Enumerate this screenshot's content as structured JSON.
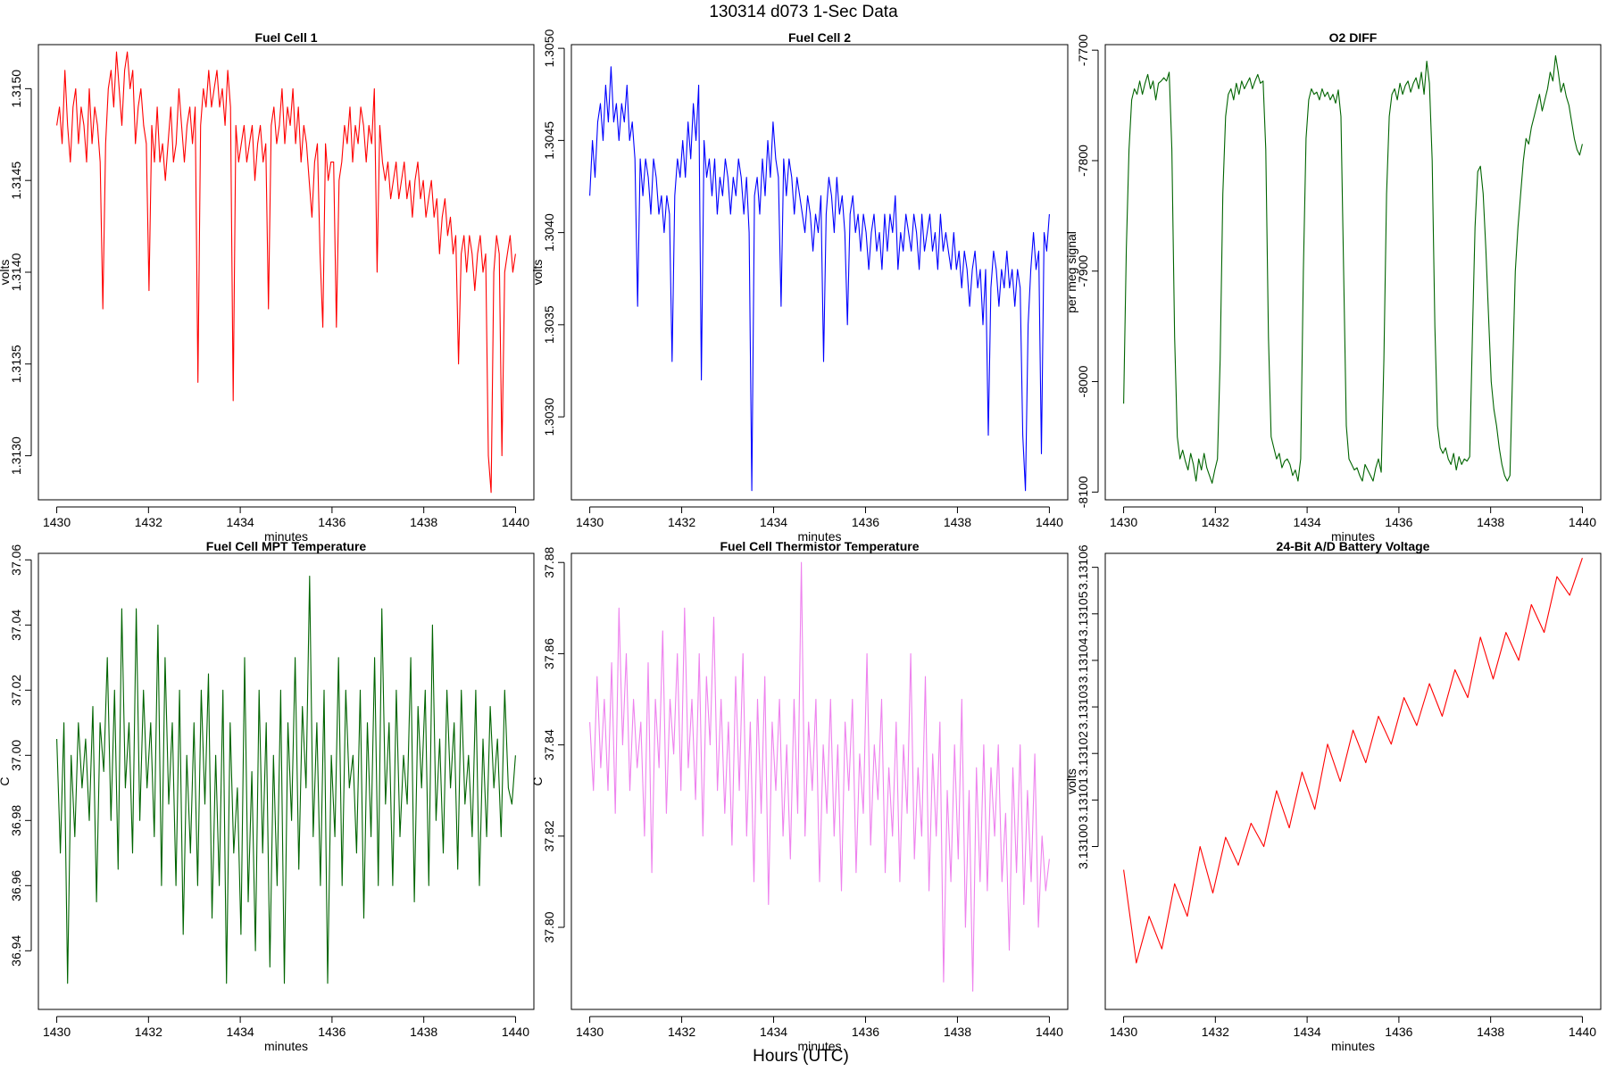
{
  "figure": {
    "title": "130314   d073   1-Sec Data",
    "outer_xlabel": "Hours (UTC)"
  },
  "chart_data": [
    {
      "type": "line",
      "title": "Fuel Cell 1",
      "xlabel": "minutes",
      "ylabel": "volts",
      "color": "#ff0000",
      "xlim": [
        1429.6,
        1440.4
      ],
      "ylim": [
        1.31276,
        1.31524
      ],
      "xticks": [
        1430,
        1432,
        1434,
        1436,
        1438,
        1440
      ],
      "yticks": [
        1.313,
        1.3135,
        1.314,
        1.3145,
        1.315
      ],
      "ytick_decimals": 4,
      "series": [
        {
          "x_start": 1430,
          "x_end": 1440,
          "values": [
            1.3148,
            1.3149,
            1.3147,
            1.3151,
            1.3148,
            1.3146,
            1.3149,
            1.315,
            1.3147,
            1.3149,
            1.3148,
            1.3146,
            1.315,
            1.3147,
            1.3149,
            1.3148,
            1.3146,
            1.3138,
            1.3147,
            1.315,
            1.3151,
            1.3149,
            1.3152,
            1.315,
            1.3148,
            1.3151,
            1.3152,
            1.315,
            1.3151,
            1.3147,
            1.3149,
            1.315,
            1.3148,
            1.3147,
            1.3139,
            1.3148,
            1.3146,
            1.3149,
            1.3146,
            1.3147,
            1.3145,
            1.3147,
            1.3149,
            1.3146,
            1.3147,
            1.315,
            1.3148,
            1.3146,
            1.3148,
            1.3149,
            1.3147,
            1.3149,
            1.3134,
            1.3148,
            1.315,
            1.3149,
            1.3151,
            1.3149,
            1.315,
            1.3151,
            1.3149,
            1.315,
            1.3148,
            1.3151,
            1.3149,
            1.3133,
            1.3148,
            1.3146,
            1.3147,
            1.3148,
            1.3146,
            1.3147,
            1.3148,
            1.3145,
            1.3147,
            1.3148,
            1.3146,
            1.3147,
            1.3138,
            1.3148,
            1.3149,
            1.3147,
            1.3148,
            1.315,
            1.3147,
            1.3149,
            1.3148,
            1.315,
            1.3147,
            1.3149,
            1.3146,
            1.3148,
            1.3147,
            1.3145,
            1.3143,
            1.3146,
            1.3147,
            1.3141,
            1.3137,
            1.3147,
            1.3145,
            1.3146,
            1.3146,
            1.3137,
            1.3145,
            1.3146,
            1.3148,
            1.3147,
            1.3149,
            1.3146,
            1.3148,
            1.3147,
            1.3149,
            1.3148,
            1.3146,
            1.3148,
            1.3147,
            1.315,
            1.314,
            1.3148,
            1.3146,
            1.3145,
            1.3146,
            1.3144,
            1.3145,
            1.3146,
            1.3144,
            1.3145,
            1.3146,
            1.3144,
            1.3145,
            1.3143,
            1.3145,
            1.3146,
            1.3144,
            1.3145,
            1.3143,
            1.3144,
            1.3145,
            1.3143,
            1.3144,
            1.3141,
            1.3143,
            1.3144,
            1.3142,
            1.3143,
            1.3141,
            1.3142,
            1.3135,
            1.3141,
            1.3142,
            1.314,
            1.3142,
            1.3141,
            1.3139,
            1.3141,
            1.3142,
            1.314,
            1.3141,
            1.313,
            1.3128,
            1.314,
            1.3142,
            1.3141,
            1.313,
            1.314,
            1.3141,
            1.3142,
            1.314,
            1.3141
          ]
        }
      ]
    },
    {
      "type": "line",
      "title": "Fuel Cell 2",
      "xlabel": "minutes",
      "ylabel": "volts",
      "color": "#0000ff",
      "xlim": [
        1429.6,
        1440.4
      ],
      "ylim": [
        1.30255,
        1.30502
      ],
      "xticks": [
        1430,
        1432,
        1434,
        1436,
        1438,
        1440
      ],
      "yticks": [
        1.303,
        1.3035,
        1.304,
        1.3045,
        1.305
      ],
      "ytick_decimals": 4,
      "series": [
        {
          "x_start": 1430,
          "x_end": 1440,
          "values": [
            1.3042,
            1.3045,
            1.3043,
            1.3046,
            1.3047,
            1.3045,
            1.3048,
            1.3046,
            1.3049,
            1.3046,
            1.3047,
            1.3045,
            1.3047,
            1.3046,
            1.3048,
            1.3045,
            1.3046,
            1.3044,
            1.3036,
            1.3044,
            1.3042,
            1.3044,
            1.3043,
            1.3041,
            1.3044,
            1.3043,
            1.3041,
            1.3042,
            1.304,
            1.3042,
            1.3041,
            1.3033,
            1.3042,
            1.3044,
            1.3043,
            1.3045,
            1.3043,
            1.3046,
            1.3044,
            1.3047,
            1.3045,
            1.3048,
            1.3032,
            1.3045,
            1.3043,
            1.3044,
            1.3042,
            1.3044,
            1.3041,
            1.3043,
            1.3042,
            1.3044,
            1.3043,
            1.3041,
            1.3043,
            1.3042,
            1.3044,
            1.3043,
            1.3041,
            1.3043,
            1.304,
            1.3026,
            1.3042,
            1.3043,
            1.3041,
            1.3044,
            1.3042,
            1.3045,
            1.3043,
            1.3046,
            1.3044,
            1.3043,
            1.3036,
            1.3044,
            1.3042,
            1.3044,
            1.3043,
            1.3041,
            1.3043,
            1.3042,
            1.3041,
            1.304,
            1.3042,
            1.3041,
            1.3039,
            1.3041,
            1.304,
            1.3042,
            1.3033,
            1.3041,
            1.3043,
            1.3042,
            1.304,
            1.3043,
            1.3041,
            1.3042,
            1.304,
            1.3035,
            1.3041,
            1.3042,
            1.304,
            1.3041,
            1.3039,
            1.3041,
            1.304,
            1.3038,
            1.304,
            1.3041,
            1.3039,
            1.304,
            1.3038,
            1.3041,
            1.3039,
            1.3041,
            1.304,
            1.3042,
            1.3038,
            1.304,
            1.3039,
            1.3041,
            1.304,
            1.3039,
            1.3041,
            1.304,
            1.3038,
            1.3041,
            1.3039,
            1.304,
            1.3041,
            1.3039,
            1.304,
            1.3038,
            1.3041,
            1.3039,
            1.304,
            1.3039,
            1.3038,
            1.304,
            1.3038,
            1.3039,
            1.3037,
            1.3039,
            1.3038,
            1.3036,
            1.3038,
            1.3039,
            1.3037,
            1.3038,
            1.3035,
            1.3038,
            1.3029,
            1.3037,
            1.3039,
            1.3038,
            1.3036,
            1.3038,
            1.3037,
            1.3039,
            1.3037,
            1.3038,
            1.3036,
            1.3038,
            1.3037,
            1.3029,
            1.3026,
            1.3035,
            1.3038,
            1.304,
            1.3038,
            1.3039,
            1.3028,
            1.304,
            1.3039,
            1.3041
          ]
        }
      ]
    },
    {
      "type": "line",
      "title": "O2 DIFF",
      "xlabel": "minutes",
      "ylabel": "per meg signal",
      "color": "#006400",
      "xlim": [
        1429.6,
        1440.4
      ],
      "ylim": [
        -8107,
        -7695
      ],
      "xticks": [
        1430,
        1432,
        1434,
        1436,
        1438,
        1440
      ],
      "yticks": [
        -8100,
        -8000,
        -7900,
        -7800,
        -7700
      ],
      "ytick_decimals": 0,
      "series": [
        {
          "x_start": 1430,
          "x_end": 1440,
          "values": [
            -8020,
            -7880,
            -7790,
            -7745,
            -7735,
            -7740,
            -7728,
            -7740,
            -7730,
            -7722,
            -7735,
            -7728,
            -7745,
            -7730,
            -7728,
            -7725,
            -7728,
            -7720,
            -7790,
            -7960,
            -8050,
            -8070,
            -8062,
            -8072,
            -8080,
            -8065,
            -8075,
            -8090,
            -8070,
            -8080,
            -8065,
            -8078,
            -8085,
            -8092,
            -8080,
            -8070,
            -7980,
            -7830,
            -7760,
            -7740,
            -7735,
            -7745,
            -7730,
            -7740,
            -7728,
            -7735,
            -7730,
            -7725,
            -7735,
            -7728,
            -7722,
            -7730,
            -7728,
            -7790,
            -7960,
            -8050,
            -8060,
            -8070,
            -8065,
            -8078,
            -8072,
            -8070,
            -8075,
            -8085,
            -8080,
            -8090,
            -8070,
            -7900,
            -7780,
            -7745,
            -7735,
            -7740,
            -7738,
            -7745,
            -7735,
            -7742,
            -7738,
            -7745,
            -7740,
            -7748,
            -7736,
            -7760,
            -7900,
            -8040,
            -8070,
            -8075,
            -8080,
            -8078,
            -8085,
            -8090,
            -8075,
            -8080,
            -8085,
            -8090,
            -8078,
            -8070,
            -8082,
            -7980,
            -7830,
            -7760,
            -7740,
            -7735,
            -7745,
            -7730,
            -7740,
            -7732,
            -7728,
            -7738,
            -7730,
            -7725,
            -7735,
            -7720,
            -7740,
            -7710,
            -7730,
            -7800,
            -7950,
            -8040,
            -8060,
            -8065,
            -8060,
            -8070,
            -8075,
            -8065,
            -8080,
            -8068,
            -8075,
            -8070,
            -8072,
            -8068,
            -7960,
            -7860,
            -7810,
            -7805,
            -7830,
            -7880,
            -7940,
            -8000,
            -8025,
            -8040,
            -8060,
            -8075,
            -8085,
            -8090,
            -8085,
            -7990,
            -7900,
            -7860,
            -7830,
            -7800,
            -7780,
            -7785,
            -7770,
            -7760,
            -7750,
            -7740,
            -7755,
            -7745,
            -7735,
            -7720,
            -7728,
            -7705,
            -7720,
            -7738,
            -7730,
            -7742,
            -7750,
            -7765,
            -7780,
            -7790,
            -7795,
            -7785
          ]
        }
      ]
    },
    {
      "type": "line",
      "title": "Fuel Cell MPT Temperature",
      "xlabel": "minutes",
      "ylabel": "C",
      "color": "#006400",
      "xlim": [
        1429.6,
        1440.4
      ],
      "ylim": [
        36.922,
        37.062
      ],
      "xticks": [
        1430,
        1432,
        1434,
        1436,
        1438,
        1440
      ],
      "yticks": [
        36.94,
        36.96,
        36.98,
        37.0,
        37.02,
        37.04,
        37.06
      ],
      "ytick_decimals": 2,
      "series": [
        {
          "x_start": 1430,
          "x_end": 1440,
          "values": [
            37.005,
            36.97,
            37.01,
            36.93,
            37.0,
            36.975,
            37.01,
            36.99,
            37.005,
            36.98,
            37.015,
            36.955,
            37.01,
            36.995,
            37.03,
            36.98,
            37.02,
            36.965,
            37.045,
            36.99,
            37.01,
            36.97,
            37.045,
            36.98,
            37.02,
            36.99,
            37.01,
            36.975,
            37.04,
            36.96,
            37.03,
            36.985,
            37.01,
            36.96,
            37.02,
            36.945,
            37.0,
            36.97,
            37.01,
            36.96,
            37.02,
            36.985,
            37.025,
            36.95,
            37.0,
            36.96,
            37.02,
            36.93,
            37.01,
            36.97,
            36.99,
            36.945,
            37.03,
            36.955,
            36.995,
            36.94,
            37.02,
            36.97,
            37.01,
            36.935,
            37.0,
            36.96,
            37.02,
            36.93,
            37.01,
            36.98,
            37.03,
            36.965,
            37.015,
            36.99,
            37.055,
            36.975,
            37.01,
            36.96,
            37.02,
            36.93,
            37.0,
            36.975,
            37.03,
            36.96,
            37.02,
            36.99,
            37.0,
            36.97,
            37.02,
            36.95,
            37.01,
            36.975,
            37.03,
            36.96,
            37.045,
            36.985,
            37.01,
            36.96,
            37.02,
            36.975,
            37.0,
            36.985,
            37.03,
            36.955,
            37.015,
            36.99,
            37.02,
            36.96,
            37.04,
            36.98,
            37.005,
            36.97,
            37.02,
            36.99,
            37.01,
            36.965,
            37.02,
            36.985,
            37.0,
            36.975,
            37.02,
            36.96,
            37.005,
            36.975,
            37.015,
            36.99,
            37.005,
            36.975,
            37.02,
            36.99,
            36.985,
            37.0
          ]
        }
      ]
    },
    {
      "type": "line",
      "title": "Fuel Cell Thermistor Temperature",
      "xlabel": "minutes",
      "ylabel": "C",
      "color": "#ee82ee",
      "xlim": [
        1429.6,
        1440.4
      ],
      "ylim": [
        37.782,
        37.882
      ],
      "xticks": [
        1430,
        1432,
        1434,
        1436,
        1438,
        1440
      ],
      "yticks": [
        37.8,
        37.82,
        37.84,
        37.86,
        37.88
      ],
      "ytick_decimals": 2,
      "series": [
        {
          "x_start": 1430,
          "x_end": 1440,
          "values": [
            37.845,
            37.83,
            37.855,
            37.835,
            37.85,
            37.83,
            37.858,
            37.825,
            37.87,
            37.84,
            37.86,
            37.83,
            37.85,
            37.835,
            37.845,
            37.82,
            37.858,
            37.812,
            37.85,
            37.835,
            37.865,
            37.825,
            37.85,
            37.838,
            37.86,
            37.83,
            37.87,
            37.835,
            37.85,
            37.828,
            37.86,
            37.82,
            37.855,
            37.84,
            37.868,
            37.83,
            37.85,
            37.825,
            37.845,
            37.818,
            37.855,
            37.83,
            37.86,
            37.82,
            37.845,
            37.81,
            37.85,
            37.825,
            37.855,
            37.805,
            37.845,
            37.83,
            37.85,
            37.82,
            37.84,
            37.815,
            37.85,
            37.825,
            37.88,
            37.82,
            37.845,
            37.83,
            37.85,
            37.81,
            37.84,
            37.825,
            37.85,
            37.82,
            37.84,
            37.808,
            37.845,
            37.83,
            37.85,
            37.812,
            37.838,
            37.825,
            37.86,
            37.818,
            37.84,
            37.828,
            37.85,
            37.812,
            37.835,
            37.82,
            37.845,
            37.81,
            37.84,
            37.825,
            37.86,
            37.815,
            37.835,
            37.82,
            37.855,
            37.808,
            37.838,
            37.82,
            37.845,
            37.788,
            37.83,
            37.81,
            37.84,
            37.815,
            37.85,
            37.8,
            37.83,
            37.786,
            37.835,
            37.81,
            37.84,
            37.808,
            37.835,
            37.82,
            37.84,
            37.81,
            37.825,
            37.795,
            37.835,
            37.812,
            37.84,
            37.805,
            37.83,
            37.81,
            37.838,
            37.8,
            37.82,
            37.808,
            37.815
          ]
        }
      ]
    },
    {
      "type": "line",
      "title": "24-Bit A/D Battery Voltage",
      "xlabel": "minutes",
      "ylabel": "volts",
      "color": "#ff0000",
      "xlim": [
        1429.6,
        1440.4
      ],
      "ylim": [
        3.130965,
        3.131063
      ],
      "xticks": [
        1430,
        1432,
        1434,
        1436,
        1438,
        1440
      ],
      "yticks": [
        3.131,
        3.13101,
        3.13102,
        3.13103,
        3.13104,
        3.13105,
        3.13106
      ],
      "ytick_decimals": 5,
      "series": [
        {
          "x_start": 1430,
          "x_end": 1440,
          "values": [
            3.130995,
            3.130975,
            3.130985,
            3.130978,
            3.130992,
            3.130985,
            3.131,
            3.13099,
            3.131002,
            3.130996,
            3.131005,
            3.131,
            3.131012,
            3.131004,
            3.131016,
            3.131008,
            3.131022,
            3.131014,
            3.131025,
            3.131018,
            3.131028,
            3.131022,
            3.131032,
            3.131026,
            3.131035,
            3.131028,
            3.131038,
            3.131032,
            3.131045,
            3.131036,
            3.131046,
            3.13104,
            3.131052,
            3.131046,
            3.131058,
            3.131054,
            3.131062
          ]
        }
      ]
    }
  ]
}
